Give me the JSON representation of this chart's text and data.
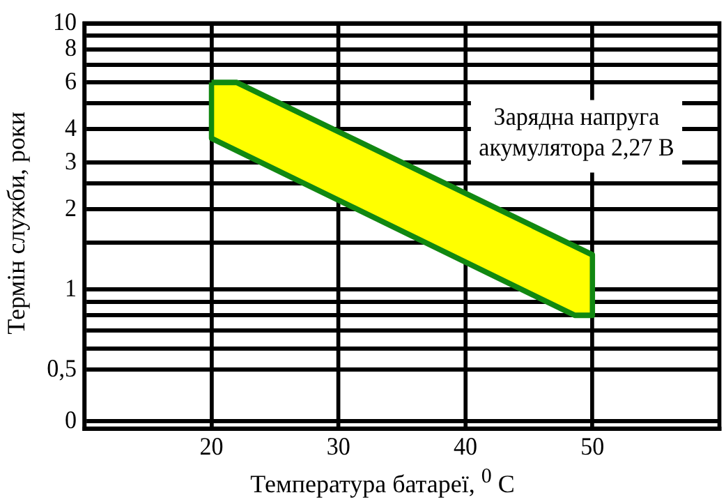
{
  "chart_data": {
    "type": "area",
    "xlabel": "Температура батареї, $^{0}$ C",
    "ylabel": "Термін служби, роки",
    "log": "y",
    "grid": true,
    "legend": false,
    "marker": "none",
    "xlim": [
      10,
      60
    ],
    "xticks": [
      20,
      30,
      40,
      50
    ],
    "ylim": [
      0.32,
      10
    ],
    "yticks": [
      {
        "value": 0.32,
        "label": "0"
      },
      {
        "value": 0.5,
        "label": "0,5"
      },
      {
        "value": 0.6,
        "label": null
      },
      {
        "value": 0.7,
        "label": null
      },
      {
        "value": 0.8,
        "label": null
      },
      {
        "value": 0.9,
        "label": null
      },
      1,
      {
        "value": 1.5,
        "label": null
      },
      2,
      {
        "value": 2.5,
        "label": null
      },
      3,
      4,
      {
        "value": 5,
        "label": null
      },
      6,
      {
        "value": 7,
        "label": null
      },
      8,
      {
        "value": 9,
        "label": null
      },
      10
    ],
    "series": [
      {
        "color": "#ffff00",
        "x": [
          20,
          22,
          50,
          50,
          48.6,
          20,
          20
        ],
        "values": [
          6,
          6,
          1.35,
          0.8,
          0.8,
          3.7,
          6
        ]
      }
    ],
    "annotations": [
      "Зарядна напруга\nакумулятора 2,27 В"
    ]
  }
}
